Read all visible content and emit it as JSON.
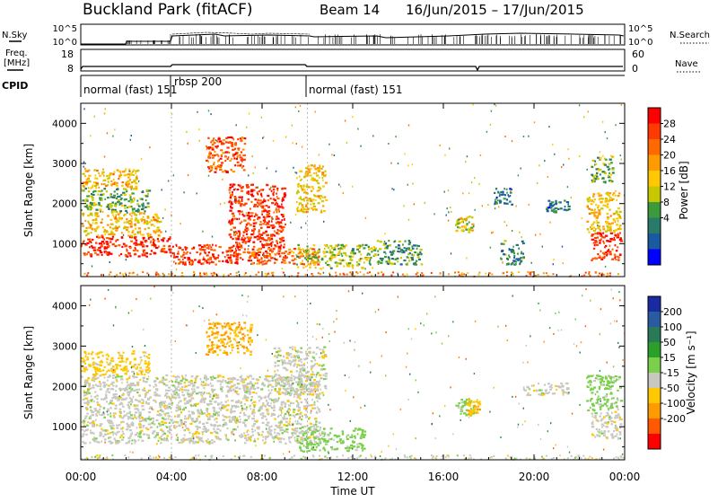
{
  "header": {
    "station": "Buckland Park (fitACF)",
    "beam": "Beam 14",
    "date_range": "16/Jun/2015 – 17/Jun/2015"
  },
  "top_panels": {
    "nsky_label": "N.Sky",
    "nsky_ticks": [
      "10^5",
      "10^0"
    ],
    "nsearch_label": "N.Search",
    "nsearch_ticks": [
      "10^5",
      "10^0"
    ],
    "freq_label_1": "Freq.",
    "freq_label_2": "[MHz]",
    "freq_ticks": [
      "18",
      "8"
    ],
    "nave_label": "Nave",
    "nave_ticks": [
      "60",
      "0"
    ],
    "cpid_label": "CPID",
    "cpid_segments": [
      {
        "label": "normal (fast) 151",
        "start_hour": 0
      },
      {
        "label": "rbsp 200",
        "start_hour": 4
      },
      {
        "label": "normal (fast) 151",
        "start_hour": 10
      }
    ]
  },
  "power_colorbar": {
    "label": "Power [dB]",
    "ticks": [
      "28",
      "24",
      "20",
      "16",
      "12",
      "8",
      "4"
    ],
    "colors": [
      "#ff0000",
      "#ff3a00",
      "#ff6a00",
      "#ff9a00",
      "#ffc800",
      "#c8c800",
      "#3c9a3c",
      "#2a7a6a",
      "#1a5aa0",
      "#0000ff"
    ]
  },
  "velocity_colorbar": {
    "label": "Velocity [m s⁻¹]",
    "ticks": [
      "200",
      "100",
      "50",
      "15",
      "-15",
      "-50",
      "-100",
      "-200"
    ],
    "colors": [
      "#1a2aa0",
      "#2a5aa0",
      "#2a7a5a",
      "#2aa02a",
      "#7ad04a",
      "#c8c8c0",
      "#ffc800",
      "#ff9a00",
      "#ff5a00",
      "#ff0000"
    ]
  },
  "chart_data": {
    "type": "heatmap",
    "xlabel": "Time UT",
    "x_ticks": [
      "00:00",
      "04:00",
      "08:00",
      "12:00",
      "16:00",
      "20:00",
      "00:00"
    ],
    "x_range_hours": [
      0,
      24
    ],
    "ylabel": "Slant Range [km]",
    "y_ticks": [
      1000,
      2000,
      3000,
      4000
    ],
    "ylim": [
      180,
      4500
    ],
    "panels": [
      {
        "name": "Power",
        "blobs": [
          {
            "t": [
              0.0,
              4.0
            ],
            "r": [
              700,
              1200
            ],
            "v": 28
          },
          {
            "t": [
              0.0,
              3.5
            ],
            "r": [
              1200,
              1800
            ],
            "v": 18
          },
          {
            "t": [
              0.0,
              3.0
            ],
            "r": [
              1800,
              2400
            ],
            "v": 12
          },
          {
            "t": [
              0.0,
              2.5
            ],
            "r": [
              2400,
              2900
            ],
            "v": 18
          },
          {
            "t": [
              4.0,
              7.0
            ],
            "r": [
              500,
              1000
            ],
            "v": 28
          },
          {
            "t": [
              5.5,
              7.2
            ],
            "r": [
              2800,
              3700
            ],
            "v": 26
          },
          {
            "t": [
              6.5,
              9.0
            ],
            "r": [
              600,
              2500
            ],
            "v": 28
          },
          {
            "t": [
              7.5,
              10.5
            ],
            "r": [
              500,
              900
            ],
            "v": 24
          },
          {
            "t": [
              9.5,
              10.8
            ],
            "r": [
              1800,
              3000
            ],
            "v": 18
          },
          {
            "t": [
              9.5,
              13.0
            ],
            "r": [
              400,
              1000
            ],
            "v": 14
          },
          {
            "t": [
              13.0,
              15.0
            ],
            "r": [
              500,
              1100
            ],
            "v": 10
          },
          {
            "t": [
              16.5,
              17.3
            ],
            "r": [
              1300,
              1700
            ],
            "v": 16
          },
          {
            "t": [
              18.5,
              19.5
            ],
            "r": [
              500,
              1100
            ],
            "v": 9
          },
          {
            "t": [
              18.2,
              19.0
            ],
            "r": [
              2000,
              2400
            ],
            "v": 6
          },
          {
            "t": [
              20.5,
              21.5
            ],
            "r": [
              1800,
              2100
            ],
            "v": 8
          },
          {
            "t": [
              22.5,
              23.8
            ],
            "r": [
              600,
              1300
            ],
            "v": 28
          },
          {
            "t": [
              22.3,
              23.8
            ],
            "r": [
              1300,
              2300
            ],
            "v": 18
          },
          {
            "t": [
              22.5,
              23.5
            ],
            "r": [
              2500,
              3200
            ],
            "v": 12
          }
        ]
      },
      {
        "name": "Velocity",
        "blobs": [
          {
            "t": [
              0.0,
              10.5
            ],
            "r": [
              600,
              2300
            ],
            "v": 0
          },
          {
            "t": [
              0.0,
              3.0
            ],
            "r": [
              2300,
              2900
            ],
            "v": -30
          },
          {
            "t": [
              5.5,
              7.5
            ],
            "r": [
              2800,
              3600
            ],
            "v": -50
          },
          {
            "t": [
              8.5,
              10.8
            ],
            "r": [
              1800,
              3000
            ],
            "v": 0
          },
          {
            "t": [
              9.5,
              12.5
            ],
            "r": [
              400,
              1000
            ],
            "v": 30
          },
          {
            "t": [
              16.5,
              17.3
            ],
            "r": [
              1300,
              1700
            ],
            "v": 30
          },
          {
            "t": [
              17.0,
              17.6
            ],
            "r": [
              1300,
              1700
            ],
            "v": -40
          },
          {
            "t": [
              19.5,
              21.5
            ],
            "r": [
              1800,
              2100
            ],
            "v": 0
          },
          {
            "t": [
              22.5,
              23.8
            ],
            "r": [
              700,
              1400
            ],
            "v": 0
          },
          {
            "t": [
              22.3,
              23.8
            ],
            "r": [
              1400,
              2300
            ],
            "v": 30
          }
        ]
      }
    ]
  }
}
